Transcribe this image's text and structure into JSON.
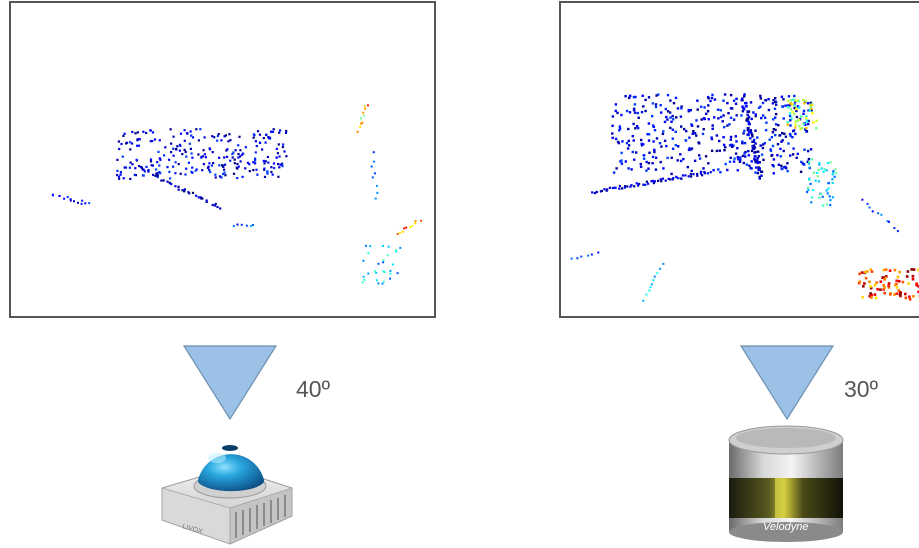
{
  "left_view": {
    "fov_label": "40º",
    "device_name": "livox-lidar",
    "device_brand": "LIVOX"
  },
  "right_view": {
    "fov_label": "30º",
    "device_name": "velodyne-lidar",
    "device_brand": "Velodyne"
  },
  "colors": {
    "panel_border": "#555555",
    "fov_fill": "#9bc2e6",
    "fov_stroke": "#6d8fb0",
    "label_text": "#555555"
  }
}
